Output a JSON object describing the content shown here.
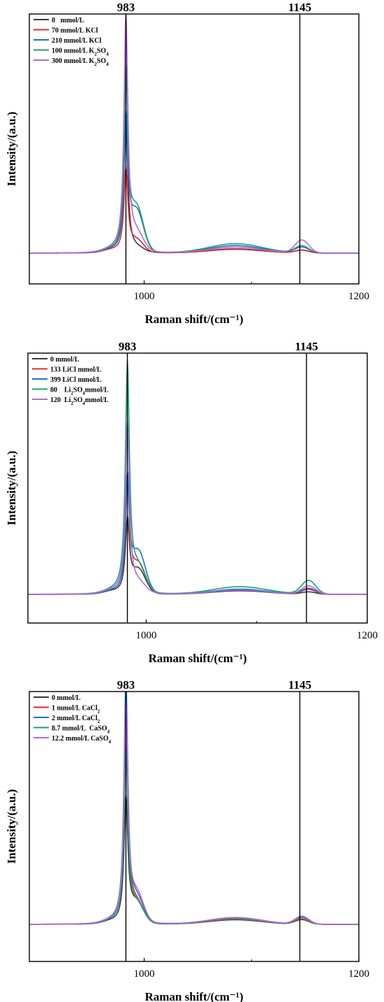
{
  "chart_data": [
    {
      "type": "line",
      "xlabel": "Raman shift/(cm⁻¹)",
      "ylabel": "Intensity/(a.u.)",
      "xlim": [
        893,
        1200
      ],
      "ylim": [
        0,
        1
      ],
      "xticks": [
        1000,
        1200
      ],
      "yticks_labeled": false,
      "reference_lines": [
        983,
        1145
      ],
      "legend_position": "top-left",
      "series": [
        {
          "name": "0 mmol/L",
          "legend_html": "0&nbsp;&nbsp;&nbsp;mmol/L",
          "color": "#3a3a3a",
          "peak983": 0.56,
          "shoulder": 0.018,
          "broad1080": 0.018,
          "peak1145": 0.012
        },
        {
          "name": "70 mmol/L KCl",
          "legend_html": "70 mmol/L KCl",
          "color": "#e8262a",
          "peak983": 0.35,
          "shoulder": 0.05,
          "broad1080": 0.016,
          "peak1145": 0.013
        },
        {
          "name": "210 mmol/L KCl",
          "legend_html": "210 mmol/L KCl",
          "color": "#1f6fd0",
          "peak983": 0.56,
          "shoulder": 0.17,
          "broad1080": 0.032,
          "peak1145": 0.025
        },
        {
          "name": "100 mmol/L K2SO4",
          "legend_html": "100 mmol/L K<tspan baseline-shift=\"sub\" font-size=\"7\">2</tspan>SO<tspan baseline-shift=\"sub\" font-size=\"7\">4</tspan>",
          "color": "#1aa56a",
          "peak983": 0.75,
          "shoulder": 0.18,
          "broad1080": 0.04,
          "peak1145": 0.03
        },
        {
          "name": "300 mmol/L K2SO4",
          "legend_html": "300 mmol/L K<tspan baseline-shift=\"sub\" font-size=\"7\">2</tspan>SO<tspan baseline-shift=\"sub\" font-size=\"7\">4</tspan>",
          "color": "#b26ae0",
          "peak983": 1.0,
          "shoulder": 0.07,
          "broad1080": 0.025,
          "peak1145": 0.055
        }
      ]
    },
    {
      "type": "line",
      "xlabel": "Raman shift/(cm⁻¹)",
      "ylabel": "Intensity/(a.u.)",
      "xlim": [
        893,
        1200
      ],
      "ylim": [
        0,
        1
      ],
      "xticks": [
        1000,
        1200
      ],
      "yticks_labeled": false,
      "reference_lines": [
        983,
        1145
      ],
      "legend_position": "top-left",
      "series": [
        {
          "name": "0 mmol/L",
          "legend_html": "0 mmol/L",
          "color": "#3a3a3a",
          "peak983": 0.3,
          "shoulder": 0.1,
          "broad1080": 0.015,
          "peak1145": 0.01
        },
        {
          "name": "133 LiCl mmol/L",
          "legend_html": "133 LiCl mmol/L",
          "color": "#e8262a",
          "peak983": 0.46,
          "shoulder": 0.12,
          "broad1080": 0.02,
          "peak1145": 0.02
        },
        {
          "name": "399 LiCl mmol/L",
          "legend_html": "399 LiCl mmol/L",
          "color": "#1f6fd0",
          "peak983": 0.47,
          "shoulder": 0.17,
          "broad1080": 0.022,
          "peak1145": 0.025
        },
        {
          "name": "80 Li2SO4mmol/L",
          "legend_html": "80&nbsp;&nbsp;&nbsp;&nbsp;Li<tspan baseline-shift=\"sub\" font-size=\"7\">2</tspan>SO<tspan baseline-shift=\"sub\" font-size=\"7\">4</tspan>mmol/L",
          "color": "#1aa56a",
          "peak983": 0.96,
          "shoulder": 0.1,
          "broad1080": 0.032,
          "peak1145": 0.058
        },
        {
          "name": "120 Li2SO4mmol/L",
          "legend_html": "120&nbsp;&nbsp;Li<tspan baseline-shift=\"sub\" font-size=\"7\">2</tspan>SO<tspan baseline-shift=\"sub\" font-size=\"7\">4</tspan>mmol/L",
          "color": "#b26ae0",
          "peak983": 0.72,
          "shoulder": 0.04,
          "broad1080": 0.018,
          "peak1145": 0.035
        }
      ]
    },
    {
      "type": "line",
      "xlabel": "Raman shift/(cm⁻¹)",
      "ylabel": "Intensity/(a.u.)",
      "xlim": [
        893,
        1200
      ],
      "ylim": [
        0,
        1
      ],
      "xticks": [
        1000,
        1200
      ],
      "yticks_labeled": false,
      "reference_lines": [
        983,
        1145
      ],
      "legend_position": "top-left",
      "series": [
        {
          "name": "0 mmol/L",
          "legend_html": "0 mmol/L",
          "color": "#3a3a3a",
          "peak983": 0.54,
          "shoulder": 0.09,
          "broad1080": 0.02,
          "peak1145": 0.02
        },
        {
          "name": "1 mmol/L CaCl2",
          "legend_html": "1 mmol/L CaCl<tspan baseline-shift=\"sub\" font-size=\"7\">2</tspan>",
          "color": "#e8262a",
          "peak983": 0.97,
          "shoulder": 0.08,
          "broad1080": 0.022,
          "peak1145": 0.022
        },
        {
          "name": "2 mmol/L CaCl2",
          "legend_html": "2 mmol/L CaCl<tspan baseline-shift=\"sub\" font-size=\"7\">2</tspan>",
          "color": "#1f6fd0",
          "peak983": 1.05,
          "shoulder": 0.1,
          "broad1080": 0.028,
          "peak1145": 0.03
        },
        {
          "name": "8.7 mmol/L CaSO4",
          "legend_html": "8.7 mmol/L&nbsp;&nbsp;CaSO<tspan baseline-shift=\"sub\" font-size=\"7\">4</tspan>",
          "color": "#1aa56a",
          "peak983": 0.77,
          "shoulder": 0.08,
          "broad1080": 0.025,
          "peak1145": 0.028
        },
        {
          "name": "12.2 mmol/L CaSO4",
          "legend_html": "12.2 mmol/L CaSO<tspan baseline-shift=\"sub\" font-size=\"7\">4</tspan>",
          "color": "#b26ae0",
          "peak983": 0.95,
          "shoulder": 0.12,
          "broad1080": 0.03,
          "peak1145": 0.035
        }
      ]
    }
  ]
}
